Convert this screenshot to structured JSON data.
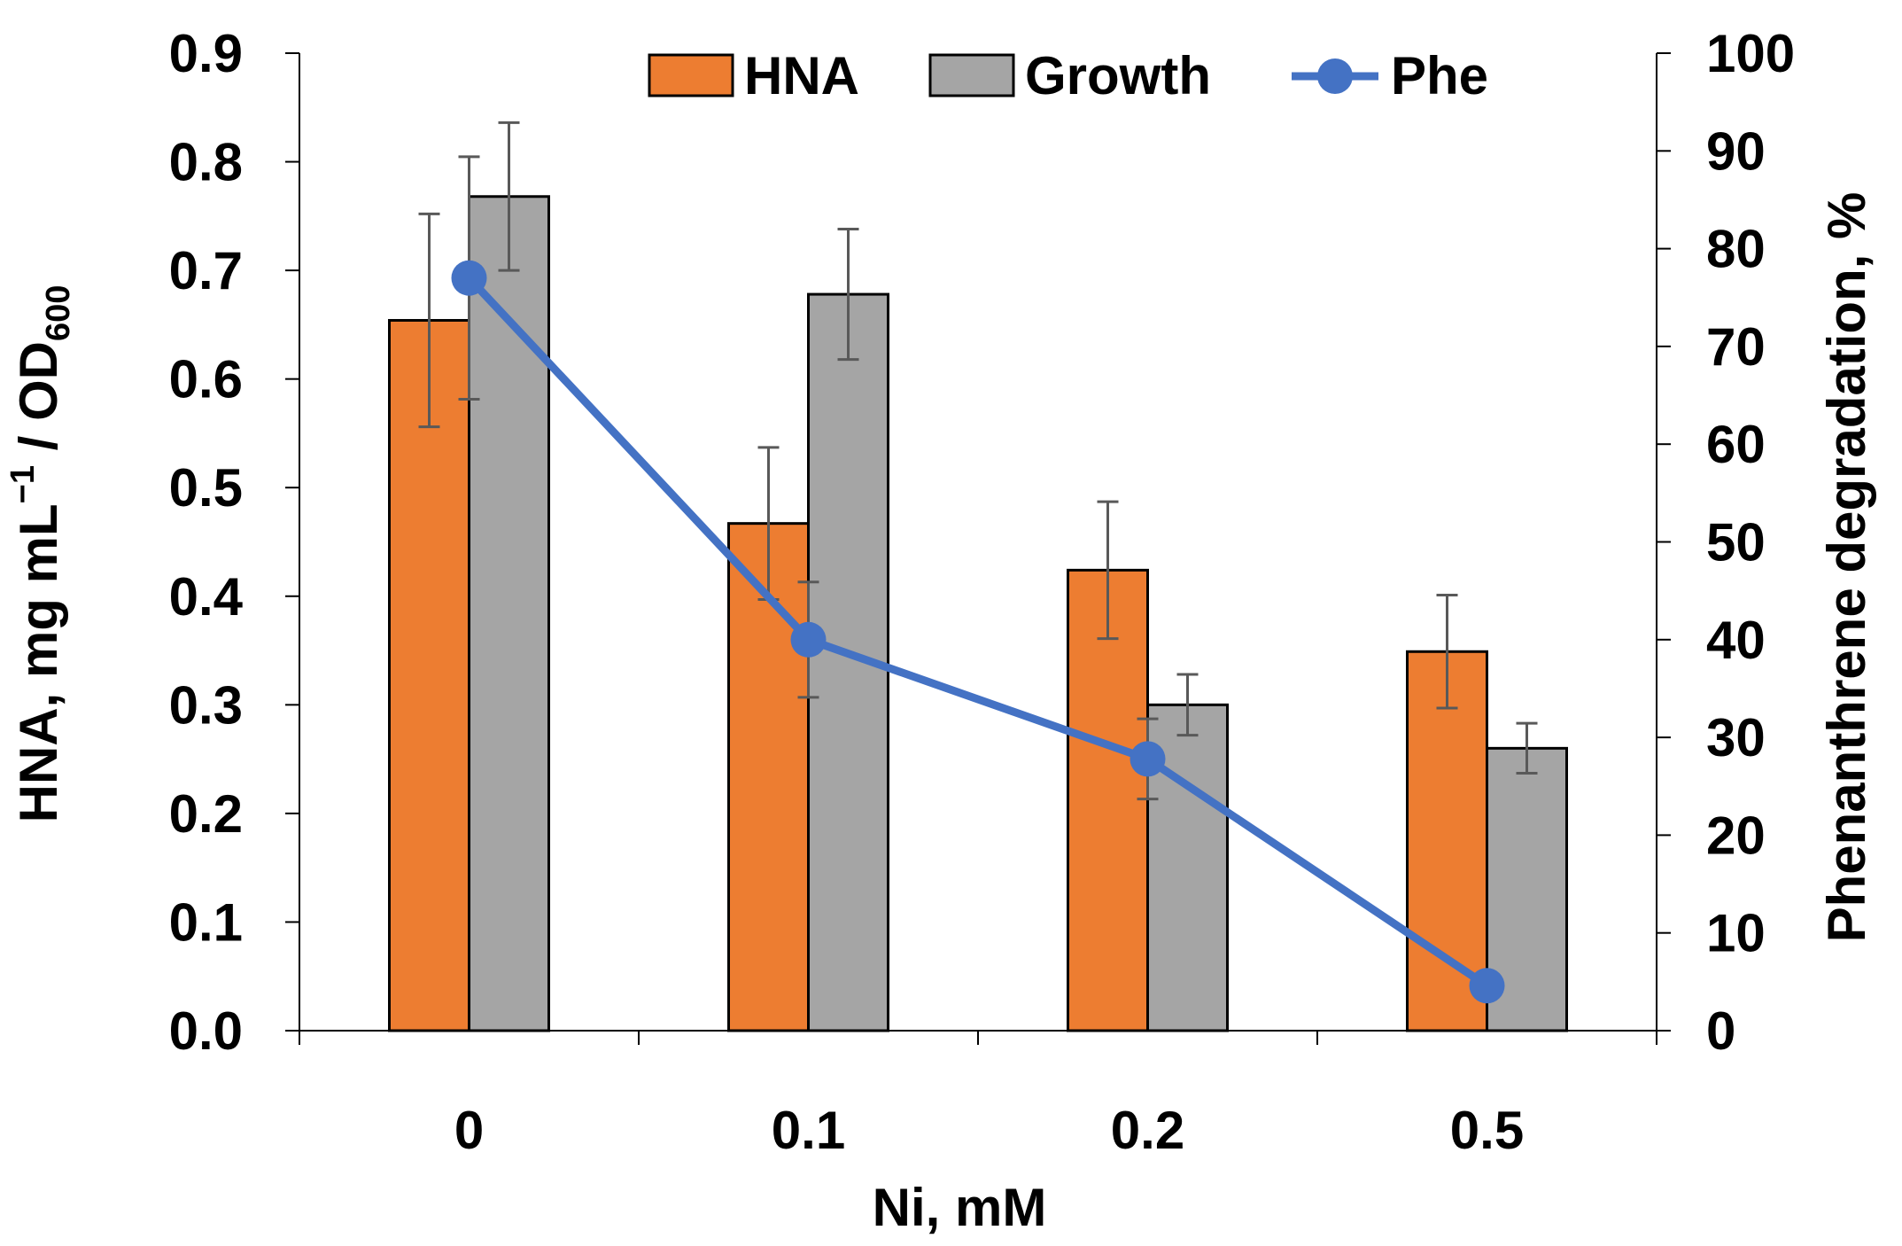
{
  "chart_data": {
    "type": "bar",
    "categories": [
      "0",
      "0.1",
      "0.2",
      "0.5"
    ],
    "xlabel": "Ni, mM",
    "ylabel": "HNA, mg mL",
    "ylabel_superscript": "−1",
    "ylabel_mid": " / OD",
    "ylabel_subscript": "600",
    "y2label": "Phenanthrene degradation, %",
    "ylim": [
      0,
      0.9
    ],
    "y2lim": [
      0,
      100
    ],
    "yticks": [
      "0.0",
      "0.1",
      "0.2",
      "0.3",
      "0.4",
      "0.5",
      "0.6",
      "0.7",
      "0.8",
      "0.9"
    ],
    "y2ticks": [
      "0",
      "10",
      "20",
      "30",
      "40",
      "50",
      "60",
      "70",
      "80",
      "90",
      "100"
    ],
    "legend_position": "top-center",
    "series": [
      {
        "name": "HNA",
        "kind": "bar",
        "axis": "left",
        "color": "#ed7d31",
        "values": [
          0.654,
          0.467,
          0.424,
          0.349
        ],
        "errors": [
          0.098,
          0.07,
          0.063,
          0.052
        ]
      },
      {
        "name": "Growth",
        "kind": "bar",
        "axis": "left",
        "color": "#a5a5a5",
        "values": [
          0.768,
          0.678,
          0.3,
          0.26
        ],
        "errors": [
          0.068,
          0.06,
          0.028,
          0.023
        ]
      },
      {
        "name": "Phe",
        "kind": "line",
        "axis": "right",
        "color": "#4472c4",
        "values": [
          77,
          40,
          27.8,
          4.6
        ],
        "errors": [
          12.4,
          5.9,
          4.1,
          0
        ]
      }
    ]
  }
}
